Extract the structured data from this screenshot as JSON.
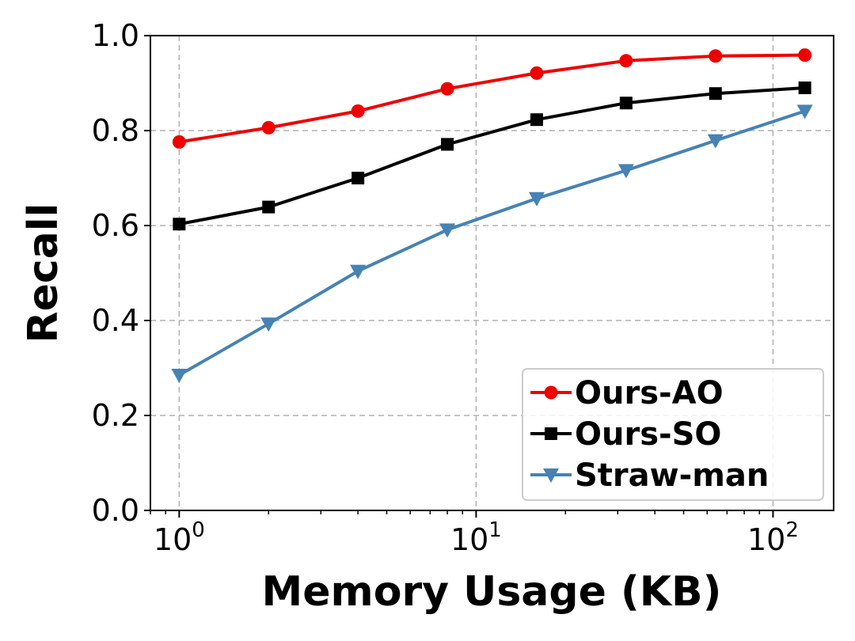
{
  "chart_data": {
    "type": "line",
    "title": "",
    "xlabel": "Memory Usage (KB)",
    "ylabel": "Recall",
    "xscale": "log",
    "xlim": [
      0.8,
      160
    ],
    "ylim": [
      0.0,
      1.0
    ],
    "grid": true,
    "legend_position": "lower-right",
    "x": [
      1,
      2,
      4,
      8,
      16,
      32,
      64,
      128
    ],
    "x_ticks": [
      {
        "value": 1,
        "base": "10",
        "exp": "0"
      },
      {
        "value": 10,
        "base": "10",
        "exp": "1"
      },
      {
        "value": 100,
        "base": "10",
        "exp": "2"
      }
    ],
    "y_ticks": [
      {
        "value": 0.0,
        "label": "0.0"
      },
      {
        "value": 0.2,
        "label": "0.2"
      },
      {
        "value": 0.4,
        "label": "0.4"
      },
      {
        "value": 0.6,
        "label": "0.6"
      },
      {
        "value": 0.8,
        "label": "0.8"
      },
      {
        "value": 1.0,
        "label": "1.0"
      }
    ],
    "series": [
      {
        "name": "Ours-AO",
        "color": "#ee0000",
        "marker": "circle",
        "values": [
          0.776,
          0.806,
          0.841,
          0.888,
          0.921,
          0.947,
          0.957,
          0.959
        ]
      },
      {
        "name": "Ours-SO",
        "color": "#000000",
        "marker": "square",
        "values": [
          0.603,
          0.639,
          0.7,
          0.771,
          0.823,
          0.858,
          0.878,
          0.89
        ]
      },
      {
        "name": "Straw-man",
        "color": "#4682b4",
        "marker": "triangle-down",
        "values": [
          0.285,
          0.393,
          0.504,
          0.591,
          0.657,
          0.716,
          0.779,
          0.841
        ]
      }
    ]
  }
}
